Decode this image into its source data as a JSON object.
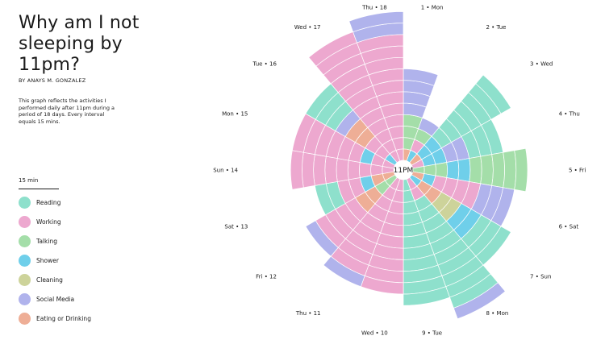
{
  "header": {
    "title": "Why am I not sleeping by 11pm?",
    "byline": "BY ANAYS M. GONZALEZ",
    "description": "This graph reflects the activities I performed daily after 11pm during a period of 18 days.  Every interval equals 15 mins."
  },
  "scale_label": "15 min",
  "center_label": "11PM",
  "colors": {
    "Reading": "#8ee0cc",
    "Working": "#eda8cf",
    "Talking": "#a4dea9",
    "Shower": "#6fcfea",
    "Cleaning": "#cdd39a",
    "Social Media": "#b0b3ec",
    "Eating or Drinking": "#eeae96"
  },
  "legend": [
    {
      "label": "Reading",
      "color": "#8ee0cc"
    },
    {
      "label": "Working",
      "color": "#eda8cf"
    },
    {
      "label": "Talking",
      "color": "#a4dea9"
    },
    {
      "label": "Shower",
      "color": "#6fcfea"
    },
    {
      "label": "Cleaning",
      "color": "#cdd39a"
    },
    {
      "label": "Social Media",
      "color": "#b0b3ec"
    },
    {
      "label": "Eating or Drinking",
      "color": "#eeae96"
    }
  ],
  "chart_data": {
    "type": "radial-stacked-bar",
    "unit": "15 min intervals",
    "days": [
      {
        "label": "1 • Mon",
        "segments": [
          {
            "activity": "Eating or Drinking",
            "intervals": 1
          },
          {
            "activity": "Talking",
            "intervals": 3
          },
          {
            "activity": "Social Media",
            "intervals": 4
          }
        ]
      },
      {
        "label": "2 • Tue",
        "segments": [
          {
            "activity": "Shower",
            "intervals": 1
          },
          {
            "activity": "Working",
            "intervals": 1
          },
          {
            "activity": "Talking",
            "intervals": 1
          },
          {
            "activity": "Social Media",
            "intervals": 1
          }
        ]
      },
      {
        "label": "3 • Wed",
        "segments": [
          {
            "activity": "Eating or Drinking",
            "intervals": 1
          },
          {
            "activity": "Shower",
            "intervals": 2
          },
          {
            "activity": "Reading",
            "intervals": 7
          }
        ]
      },
      {
        "label": "4 • Thu",
        "segments": [
          {
            "activity": "Working",
            "intervals": 1
          },
          {
            "activity": "Shower",
            "intervals": 2
          },
          {
            "activity": "Social Media",
            "intervals": 2
          },
          {
            "activity": "Reading",
            "intervals": 3
          }
        ]
      },
      {
        "label": "5 • Fri",
        "segments": [
          {
            "activity": "Talking",
            "intervals": 3
          },
          {
            "activity": "Shower",
            "intervals": 2
          },
          {
            "activity": "Talking",
            "intervals": 5
          }
        ]
      },
      {
        "label": "6 • Sat",
        "segments": [
          {
            "activity": "Eating or Drinking",
            "intervals": 1
          },
          {
            "activity": "Shower",
            "intervals": 1
          },
          {
            "activity": "Working",
            "intervals": 4
          },
          {
            "activity": "Social Media",
            "intervals": 3
          }
        ]
      },
      {
        "label": "7 • Sun",
        "segments": [
          {
            "activity": "Shower",
            "intervals": 1
          },
          {
            "activity": "Eating or Drinking",
            "intervals": 2
          },
          {
            "activity": "Cleaning",
            "intervals": 2
          },
          {
            "activity": "Shower",
            "intervals": 2
          },
          {
            "activity": "Reading",
            "intervals": 3
          }
        ]
      },
      {
        "label": "8 • Mon",
        "segments": [
          {
            "activity": "Working",
            "intervals": 2
          },
          {
            "activity": "Reading",
            "intervals": 10
          },
          {
            "activity": "Social Media",
            "intervals": 1
          }
        ]
      },
      {
        "label": "9 • Tue",
        "segments": [
          {
            "activity": "Reading",
            "intervals": 11
          }
        ]
      },
      {
        "label": "Wed • 10",
        "segments": [
          {
            "activity": "Working",
            "intervals": 10
          }
        ]
      },
      {
        "label": "Thu • 11",
        "segments": [
          {
            "activity": "Working",
            "intervals": 9
          },
          {
            "activity": "Social Media",
            "intervals": 1
          }
        ]
      },
      {
        "label": "Fri • 12",
        "segments": [
          {
            "activity": "Talking",
            "intervals": 2
          },
          {
            "activity": "Eating or Drinking",
            "intervals": 2
          },
          {
            "activity": "Working",
            "intervals": 4
          },
          {
            "activity": "Social Media",
            "intervals": 1
          }
        ]
      },
      {
        "label": "Sat • 13",
        "segments": [
          {
            "activity": "Eating or Drinking",
            "intervals": 2
          },
          {
            "activity": "Shower",
            "intervals": 1
          },
          {
            "activity": "Working",
            "intervals": 2
          },
          {
            "activity": "Reading",
            "intervals": 2
          }
        ]
      },
      {
        "label": "Sun • 14",
        "segments": [
          {
            "activity": "Working",
            "intervals": 9
          }
        ]
      },
      {
        "label": "Mon • 15",
        "segments": [
          {
            "activity": "Working",
            "intervals": 2
          },
          {
            "activity": "Shower",
            "intervals": 1
          },
          {
            "activity": "Working",
            "intervals": 6
          }
        ]
      },
      {
        "label": "Tue • 16",
        "segments": [
          {
            "activity": "Shower",
            "intervals": 1
          },
          {
            "activity": "Working",
            "intervals": 2
          },
          {
            "activity": "Eating or Drinking",
            "intervals": 2
          },
          {
            "activity": "Social Media",
            "intervals": 1
          },
          {
            "activity": "Reading",
            "intervals": 3
          }
        ]
      },
      {
        "label": "Wed • 17",
        "segments": [
          {
            "activity": "Working",
            "intervals": 12
          }
        ]
      },
      {
        "label": "Thu • 18",
        "segments": [
          {
            "activity": "Working",
            "intervals": 11
          },
          {
            "activity": "Social Media",
            "intervals": 2
          }
        ]
      }
    ]
  }
}
